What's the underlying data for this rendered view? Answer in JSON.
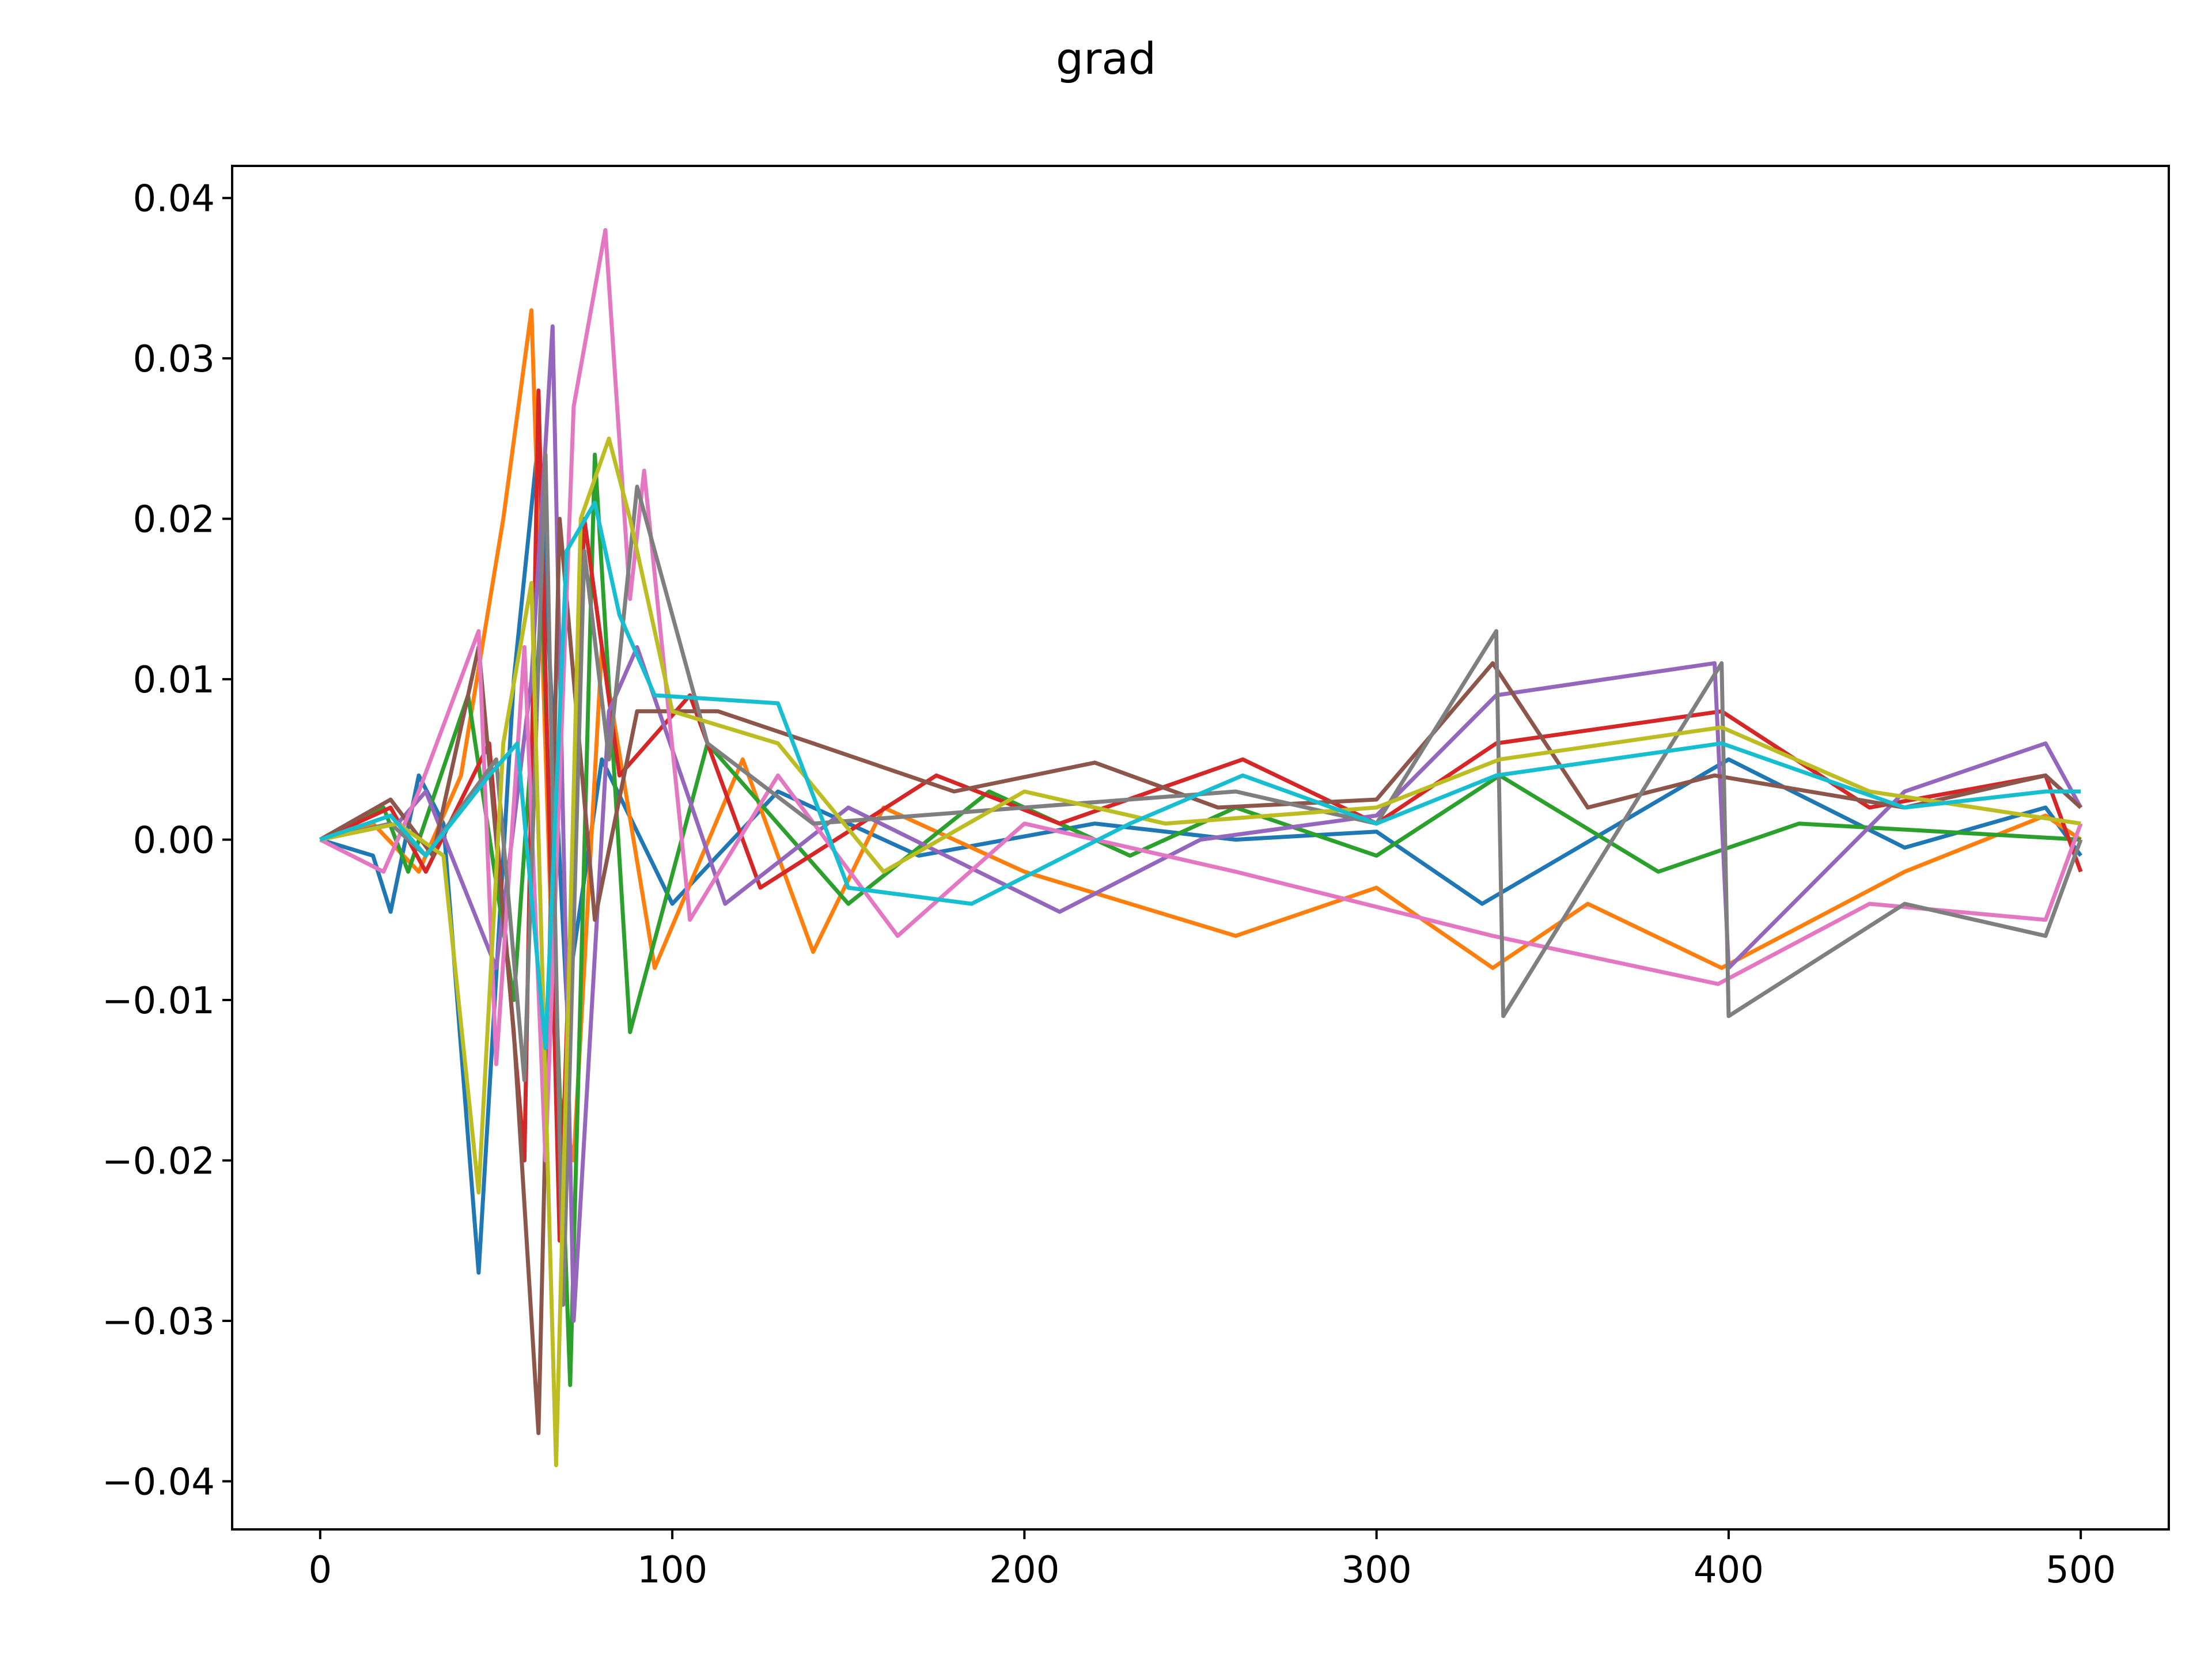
{
  "chart_data": {
    "type": "line",
    "title": "grad",
    "xlabel": "",
    "ylabel": "",
    "xlim": [
      -25,
      525
    ],
    "ylim": [
      -0.043,
      0.042
    ],
    "xticks": [
      0,
      100,
      200,
      300,
      400,
      500
    ],
    "xtick_labels": [
      "0",
      "100",
      "200",
      "300",
      "400",
      "500"
    ],
    "yticks": [
      0.04,
      0.03,
      0.02,
      0.01,
      0.0,
      -0.01,
      -0.02,
      -0.03,
      -0.04
    ],
    "ytick_labels": [
      "0.04",
      "0.03",
      "0.02",
      "0.01",
      "0.00",
      "−0.01",
      "−0.02",
      "−0.03",
      "−0.04"
    ],
    "grid": false,
    "legend": "none",
    "x_range": [
      0,
      500
    ],
    "colors": [
      "#1f77b4",
      "#ff7f0e",
      "#2ca02c",
      "#d62728",
      "#9467bd",
      "#8c564b",
      "#e377c2",
      "#7f7f7f",
      "#bcbd22",
      "#17becf"
    ],
    "series": [
      {
        "values": [
          [
            0,
            0
          ],
          [
            15,
            -0.001
          ],
          [
            20,
            -0.0045
          ],
          [
            28,
            0.004
          ],
          [
            35,
            0.001
          ],
          [
            45,
            -0.027
          ],
          [
            55,
            0.01
          ],
          [
            62,
            0.025
          ],
          [
            70,
            -0.01
          ],
          [
            80,
            0.005
          ],
          [
            100,
            -0.004
          ],
          [
            130,
            0.003
          ],
          [
            170,
            -0.001
          ],
          [
            220,
            0.001
          ],
          [
            260,
            0.0
          ],
          [
            300,
            0.0005
          ],
          [
            330,
            -0.004
          ],
          [
            400,
            0.005
          ],
          [
            450,
            -0.0005
          ],
          [
            490,
            0.002
          ],
          [
            500,
            -0.001
          ]
        ]
      },
      {
        "values": [
          [
            0,
            0
          ],
          [
            15,
            0.001
          ],
          [
            28,
            -0.002
          ],
          [
            40,
            0.004
          ],
          [
            52,
            0.02
          ],
          [
            60,
            0.033
          ],
          [
            67,
            -0.015
          ],
          [
            72,
            -0.02
          ],
          [
            80,
            0.012
          ],
          [
            95,
            -0.008
          ],
          [
            120,
            0.005
          ],
          [
            140,
            -0.007
          ],
          [
            160,
            0.002
          ],
          [
            200,
            -0.002
          ],
          [
            260,
            -0.006
          ],
          [
            300,
            -0.003
          ],
          [
            333,
            -0.008
          ],
          [
            360,
            -0.004
          ],
          [
            398,
            -0.008
          ],
          [
            450,
            -0.002
          ],
          [
            490,
            0.0015
          ],
          [
            500,
            0.0
          ]
        ]
      },
      {
        "values": [
          [
            0,
            0
          ],
          [
            18,
            0.002
          ],
          [
            25,
            -0.002
          ],
          [
            42,
            0.009
          ],
          [
            55,
            -0.01
          ],
          [
            63,
            0.015
          ],
          [
            71,
            -0.034
          ],
          [
            78,
            0.024
          ],
          [
            88,
            -0.012
          ],
          [
            110,
            0.006
          ],
          [
            150,
            -0.004
          ],
          [
            190,
            0.003
          ],
          [
            230,
            -0.001
          ],
          [
            260,
            0.002
          ],
          [
            300,
            -0.001
          ],
          [
            335,
            0.004
          ],
          [
            380,
            -0.002
          ],
          [
            420,
            0.001
          ],
          [
            500,
            0.0
          ]
        ]
      },
      {
        "values": [
          [
            0,
            0
          ],
          [
            20,
            0.002
          ],
          [
            30,
            -0.002
          ],
          [
            48,
            0.006
          ],
          [
            58,
            -0.02
          ],
          [
            62,
            0.028
          ],
          [
            68,
            -0.025
          ],
          [
            75,
            0.02
          ],
          [
            85,
            0.004
          ],
          [
            105,
            0.009
          ],
          [
            125,
            -0.003
          ],
          [
            175,
            0.004
          ],
          [
            210,
            0.001
          ],
          [
            262,
            0.005
          ],
          [
            300,
            0.001
          ],
          [
            334,
            0.006
          ],
          [
            398,
            0.008
          ],
          [
            440,
            0.002
          ],
          [
            490,
            0.004
          ],
          [
            500,
            -0.002
          ]
        ]
      },
      {
        "values": [
          [
            0,
            0
          ],
          [
            22,
            0.001
          ],
          [
            30,
            0.003
          ],
          [
            50,
            -0.008
          ],
          [
            60,
            0.01
          ],
          [
            66,
            0.032
          ],
          [
            72,
            -0.03
          ],
          [
            82,
            0.008
          ],
          [
            90,
            0.012
          ],
          [
            115,
            -0.004
          ],
          [
            150,
            0.002
          ],
          [
            210,
            -0.0045
          ],
          [
            250,
            0.0
          ],
          [
            300,
            0.0015
          ],
          [
            334,
            0.009
          ],
          [
            396,
            0.011
          ],
          [
            400,
            -0.008
          ],
          [
            450,
            0.003
          ],
          [
            490,
            0.006
          ],
          [
            500,
            0.002
          ]
        ]
      },
      {
        "values": [
          [
            0,
            0
          ],
          [
            20,
            0.0025
          ],
          [
            32,
            -0.001
          ],
          [
            45,
            0.012
          ],
          [
            55,
            -0.012
          ],
          [
            62,
            -0.037
          ],
          [
            68,
            0.02
          ],
          [
            78,
            -0.005
          ],
          [
            90,
            0.008
          ],
          [
            113,
            0.008
          ],
          [
            140,
            0.006
          ],
          [
            180,
            0.003
          ],
          [
            220,
            0.0048
          ],
          [
            255,
            0.002
          ],
          [
            300,
            0.0025
          ],
          [
            333,
            0.011
          ],
          [
            360,
            0.002
          ],
          [
            396,
            0.004
          ],
          [
            450,
            0.002
          ],
          [
            490,
            0.004
          ],
          [
            500,
            0.002
          ]
        ]
      },
      {
        "values": [
          [
            0,
            0
          ],
          [
            18,
            -0.002
          ],
          [
            28,
            0.003
          ],
          [
            45,
            0.013
          ],
          [
            50,
            -0.014
          ],
          [
            58,
            0.012
          ],
          [
            64,
            -0.02
          ],
          [
            72,
            0.027
          ],
          [
            81,
            0.038
          ],
          [
            88,
            0.015
          ],
          [
            92,
            0.023
          ],
          [
            105,
            -0.005
          ],
          [
            130,
            0.004
          ],
          [
            164,
            -0.006
          ],
          [
            200,
            0.001
          ],
          [
            260,
            -0.002
          ],
          [
            333,
            -0.006
          ],
          [
            397,
            -0.009
          ],
          [
            440,
            -0.004
          ],
          [
            490,
            -0.005
          ],
          [
            500,
            0.001
          ]
        ]
      },
      {
        "values": [
          [
            0,
            0
          ],
          [
            20,
            0.001
          ],
          [
            30,
            -0.001
          ],
          [
            50,
            0.005
          ],
          [
            58,
            -0.015
          ],
          [
            64,
            0.024
          ],
          [
            69,
            -0.029
          ],
          [
            75,
            0.018
          ],
          [
            82,
            0.005
          ],
          [
            90,
            0.022
          ],
          [
            110,
            0.006
          ],
          [
            140,
            0.001
          ],
          [
            200,
            0.002
          ],
          [
            260,
            0.003
          ],
          [
            300,
            0.001
          ],
          [
            334,
            0.013
          ],
          [
            336,
            -0.011
          ],
          [
            398,
            0.011
          ],
          [
            400,
            -0.011
          ],
          [
            450,
            -0.004
          ],
          [
            490,
            -0.006
          ],
          [
            500,
            0.0
          ]
        ]
      },
      {
        "values": [
          [
            0,
            0
          ],
          [
            22,
            0.001
          ],
          [
            35,
            -0.001
          ],
          [
            45,
            -0.022
          ],
          [
            52,
            0.006
          ],
          [
            60,
            0.016
          ],
          [
            67,
            -0.039
          ],
          [
            74,
            0.02
          ],
          [
            82,
            0.025
          ],
          [
            88,
            0.02
          ],
          [
            100,
            0.008
          ],
          [
            130,
            0.006
          ],
          [
            160,
            -0.002
          ],
          [
            200,
            0.003
          ],
          [
            240,
            0.001
          ],
          [
            300,
            0.002
          ],
          [
            335,
            0.005
          ],
          [
            398,
            0.007
          ],
          [
            440,
            0.003
          ],
          [
            500,
            0.001
          ]
        ]
      },
      {
        "values": [
          [
            0,
            0
          ],
          [
            20,
            0.0015
          ],
          [
            30,
            -0.001
          ],
          [
            48,
            0.004
          ],
          [
            56,
            0.006
          ],
          [
            64,
            -0.013
          ],
          [
            70,
            0.018
          ],
          [
            78,
            0.021
          ],
          [
            85,
            0.014
          ],
          [
            95,
            0.009
          ],
          [
            130,
            0.0085
          ],
          [
            150,
            -0.003
          ],
          [
            185,
            -0.004
          ],
          [
            230,
            0.001
          ],
          [
            262,
            0.004
          ],
          [
            300,
            0.001
          ],
          [
            334,
            0.004
          ],
          [
            398,
            0.006
          ],
          [
            450,
            0.002
          ],
          [
            490,
            0.003
          ],
          [
            500,
            0.003
          ]
        ]
      }
    ]
  }
}
